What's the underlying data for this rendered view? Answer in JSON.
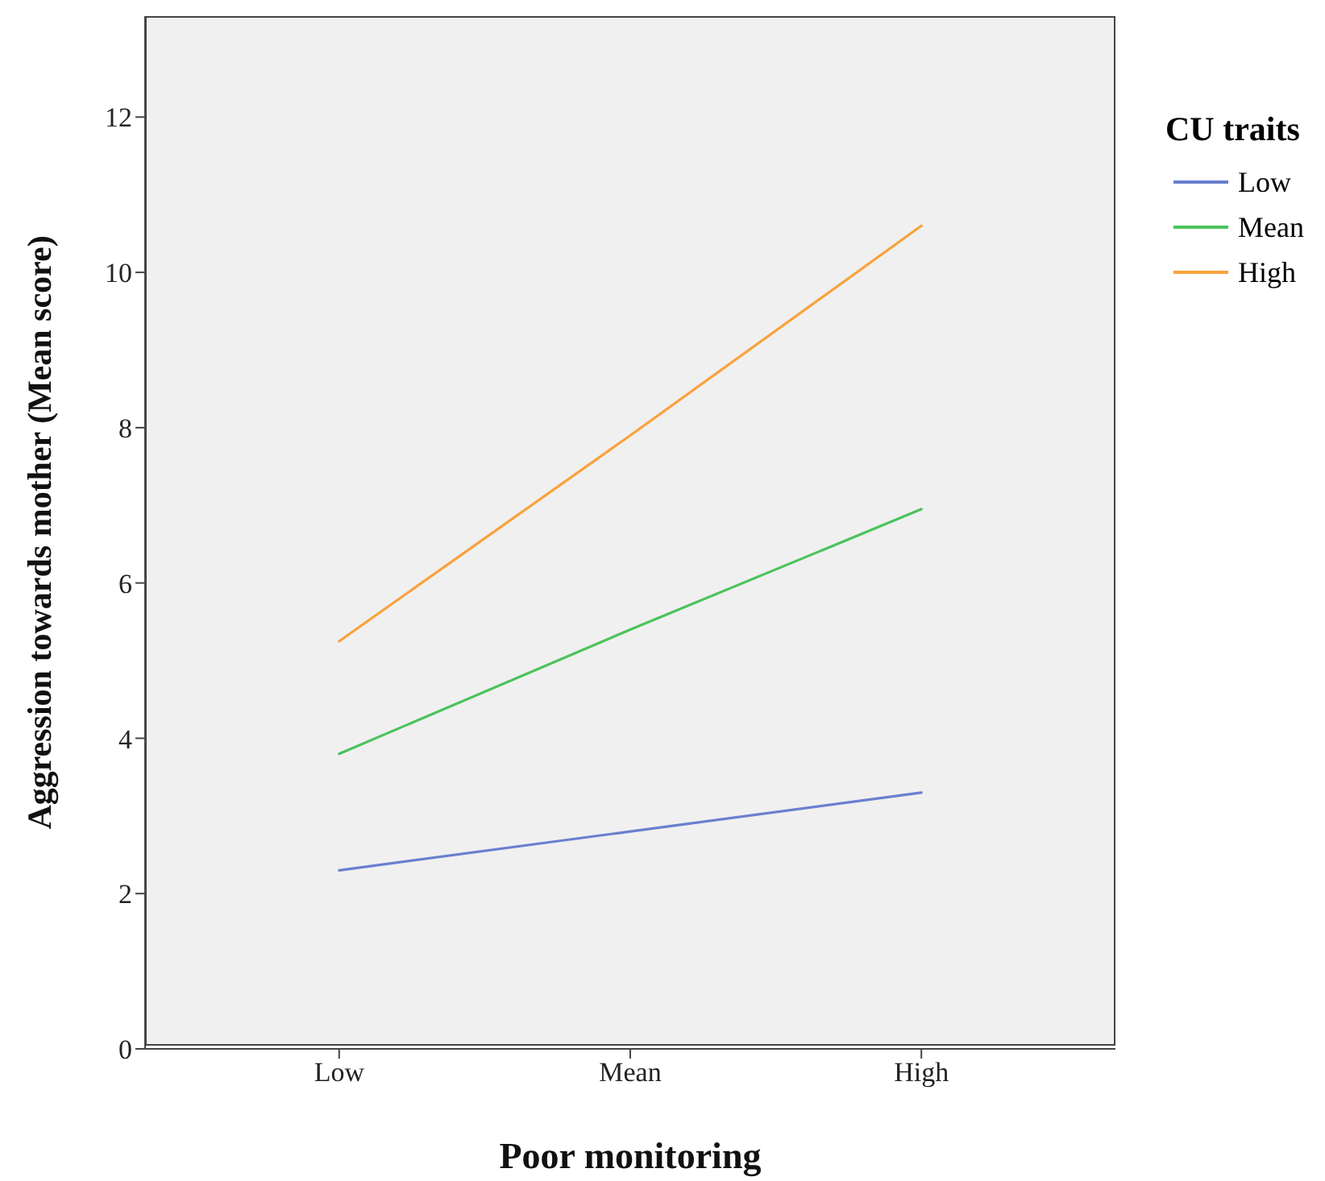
{
  "chart_data": {
    "type": "line",
    "xlabel": "Poor monitoring",
    "ylabel": "Aggression towards mother (Mean score)",
    "legend_title": "CU traits",
    "legend": "right",
    "categories": [
      "Low",
      "Mean",
      "High"
    ],
    "series": [
      {
        "name": "Low",
        "color": "#6a7fcf",
        "values": [
          2.3,
          2.8,
          3.3
        ]
      },
      {
        "name": "Mean",
        "color": "#4cc35c",
        "values": [
          3.8,
          5.4,
          6.95
        ]
      },
      {
        "name": "High",
        "color": "#f9a23c",
        "values": [
          5.25,
          7.9,
          10.6
        ]
      }
    ],
    "ylim": [
      0,
      13.3
    ],
    "yticks": [
      0,
      2,
      4,
      6,
      8,
      10,
      12
    ],
    "grid": false,
    "marker": "none",
    "line_style": "solid"
  }
}
